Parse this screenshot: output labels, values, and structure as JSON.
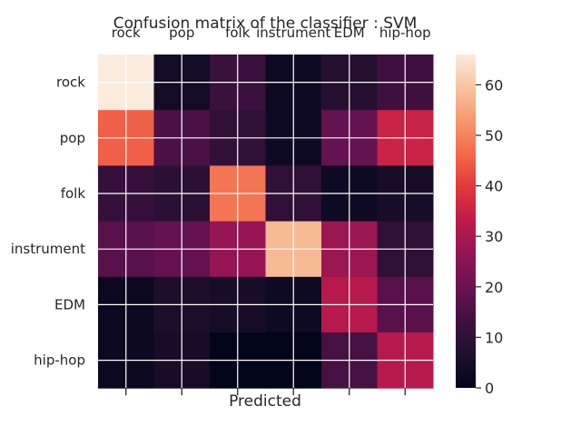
{
  "chart_data": {
    "type": "heatmap",
    "title": "Confusion matrix of the classifier : SVM",
    "xlabel": "Predicted",
    "ylabel": "",
    "x_categories": [
      "rock",
      "pop",
      "folk",
      "instrument",
      "EDM",
      "hip-hop"
    ],
    "y_categories": [
      "rock",
      "pop",
      "folk",
      "instrument",
      "EDM",
      "hip-hop"
    ],
    "values": [
      [
        66,
        4,
        12,
        3,
        8,
        13
      ],
      [
        45,
        15,
        10,
        3,
        19,
        35
      ],
      [
        11,
        9,
        48,
        10,
        3,
        5
      ],
      [
        17,
        19,
        27,
        58,
        28,
        10
      ],
      [
        2,
        6,
        5,
        3,
        32,
        17
      ],
      [
        2,
        5,
        0,
        0,
        14,
        32
      ]
    ],
    "colorbar": {
      "range": [
        0,
        66
      ],
      "ticks": [
        0,
        10,
        20,
        30,
        40,
        50,
        60
      ],
      "colormap": "rocket"
    },
    "grid": true,
    "x_tick_labels_position": "top"
  }
}
